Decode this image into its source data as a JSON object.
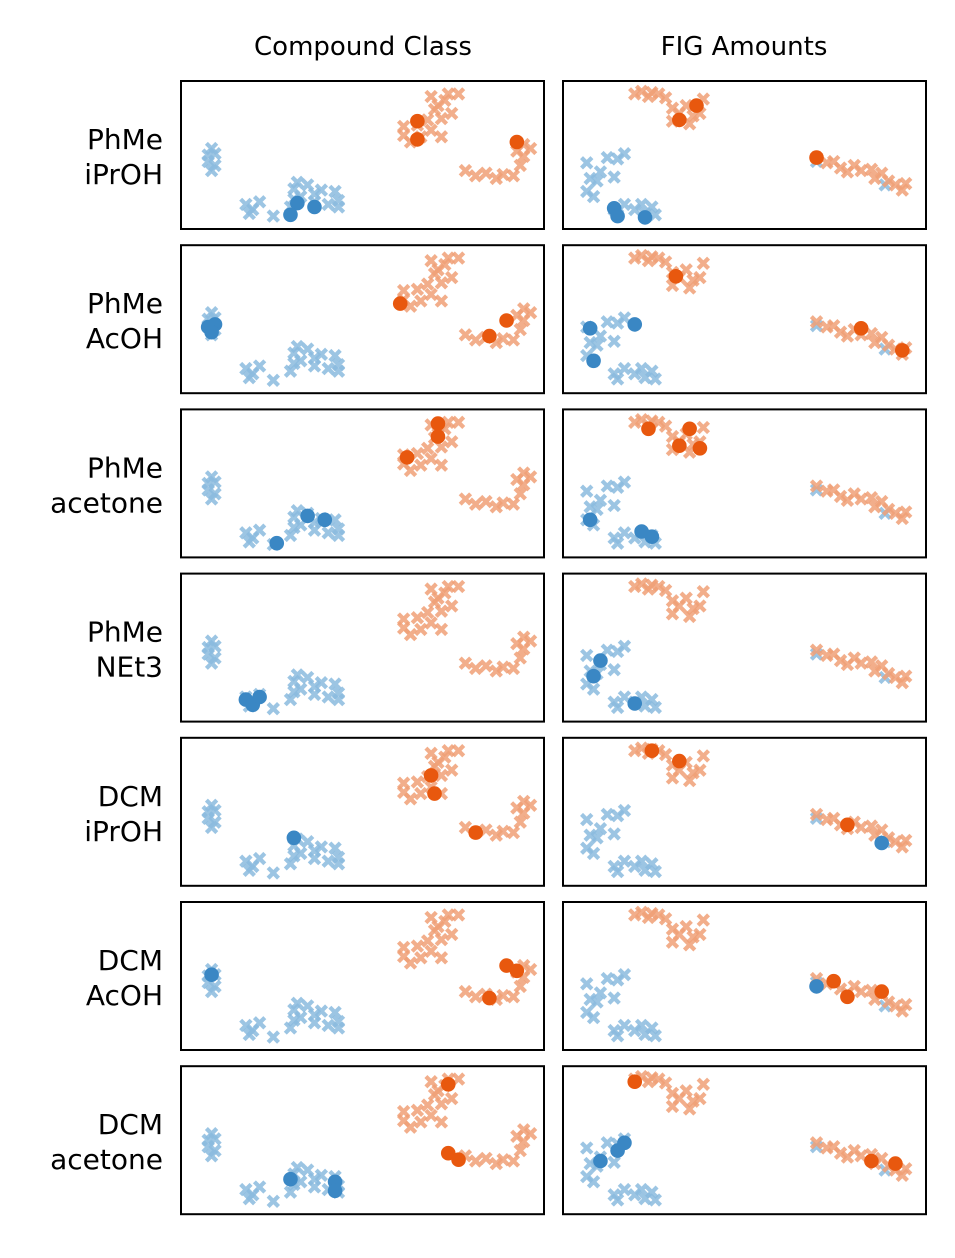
{
  "colors": {
    "blue": "#3a87c4",
    "orange": "#e8580e",
    "bg_blue": "#8bbbdf",
    "bg_orange": "#f0a077"
  },
  "chart_data": {
    "type": "scatter",
    "markers": {
      "background": "x",
      "highlight": "circle"
    },
    "columns": [
      {
        "title": "Compound Class",
        "background": [
          {
            "class": "blue",
            "points": [
              [
                0.06,
                0.45
              ],
              [
                0.07,
                0.49
              ],
              [
                0.05,
                0.55
              ],
              [
                0.07,
                0.58
              ],
              [
                0.06,
                0.62
              ],
              [
                0.05,
                0.5
              ],
              [
                0.16,
                0.88
              ],
              [
                0.18,
                0.92
              ],
              [
                0.2,
                0.86
              ],
              [
                0.17,
                0.95
              ],
              [
                0.24,
                0.97
              ],
              [
                0.29,
                0.9
              ],
              [
                0.3,
                0.76
              ],
              [
                0.31,
                0.71
              ],
              [
                0.3,
                0.84
              ],
              [
                0.34,
                0.73
              ],
              [
                0.32,
                0.82
              ],
              [
                0.36,
                0.86
              ],
              [
                0.38,
                0.77
              ],
              [
                0.4,
                0.88
              ],
              [
                0.42,
                0.78
              ],
              [
                0.43,
                0.85
              ],
              [
                0.43,
                0.9
              ],
              [
                0.36,
                0.8
              ]
            ]
          },
          {
            "class": "orange",
            "points": [
              [
                0.62,
                0.28
              ],
              [
                0.62,
                0.35
              ],
              [
                0.64,
                0.4
              ],
              [
                0.66,
                0.27
              ],
              [
                0.67,
                0.36
              ],
              [
                0.69,
                0.23
              ],
              [
                0.71,
                0.15
              ],
              [
                0.73,
                0.22
              ],
              [
                0.74,
                0.08
              ],
              [
                0.7,
                0.05
              ],
              [
                0.7,
                0.31
              ],
              [
                0.73,
                0.36
              ],
              [
                0.72,
                0.12
              ],
              [
                0.75,
                0.03
              ],
              [
                0.76,
                0.18
              ],
              [
                0.78,
                0.03
              ],
              [
                0.8,
                0.62
              ],
              [
                0.83,
                0.66
              ],
              [
                0.86,
                0.64
              ],
              [
                0.89,
                0.68
              ],
              [
                0.91,
                0.65
              ],
              [
                0.94,
                0.66
              ],
              [
                0.96,
                0.58
              ],
              [
                0.97,
                0.51
              ],
              [
                0.99,
                0.45
              ],
              [
                0.97,
                0.42
              ],
              [
                0.95,
                0.47
              ]
            ]
          }
        ]
      },
      {
        "title": "FIG Amounts",
        "background": [
          {
            "class": "blue",
            "points": [
              [
                0.04,
                0.56
              ],
              [
                0.05,
                0.68
              ],
              [
                0.04,
                0.78
              ],
              [
                0.06,
                0.82
              ],
              [
                0.08,
                0.63
              ],
              [
                0.07,
                0.7
              ],
              [
                0.1,
                0.52
              ],
              [
                0.13,
                0.53
              ],
              [
                0.15,
                0.49
              ],
              [
                0.12,
                0.67
              ],
              [
                0.12,
                0.92
              ],
              [
                0.13,
                0.96
              ],
              [
                0.15,
                0.88
              ],
              [
                0.18,
                0.92
              ],
              [
                0.2,
                0.88
              ],
              [
                0.21,
                0.95
              ],
              [
                0.23,
                0.9
              ],
              [
                0.24,
                0.96
              ],
              [
                0.71,
                0.55
              ],
              [
                0.91,
                0.73
              ]
            ]
          },
          {
            "class": "orange",
            "points": [
              [
                0.18,
                0.03
              ],
              [
                0.2,
                0.01
              ],
              [
                0.22,
                0.05
              ],
              [
                0.23,
                0.02
              ],
              [
                0.25,
                0.03
              ],
              [
                0.27,
                0.06
              ],
              [
                0.29,
                0.14
              ],
              [
                0.29,
                0.24
              ],
              [
                0.31,
                0.18
              ],
              [
                0.33,
                0.12
              ],
              [
                0.34,
                0.26
              ],
              [
                0.35,
                0.2
              ],
              [
                0.37,
                0.18
              ],
              [
                0.38,
                0.07
              ],
              [
                0.71,
                0.52
              ],
              [
                0.74,
                0.56
              ],
              [
                0.76,
                0.55
              ],
              [
                0.78,
                0.6
              ],
              [
                0.8,
                0.63
              ],
              [
                0.82,
                0.58
              ],
              [
                0.84,
                0.62
              ],
              [
                0.87,
                0.61
              ],
              [
                0.88,
                0.68
              ],
              [
                0.9,
                0.64
              ],
              [
                0.92,
                0.7
              ],
              [
                0.94,
                0.73
              ],
              [
                0.96,
                0.77
              ],
              [
                0.97,
                0.72
              ]
            ]
          }
        ]
      }
    ],
    "rows": [
      {
        "label_line1": "PhMe",
        "label_line2": "iPrOH",
        "highlight": [
          [
            {
              "class": "orange",
              "x": 0.66,
              "y": 0.24
            },
            {
              "class": "orange",
              "x": 0.66,
              "y": 0.38
            },
            {
              "class": "orange",
              "x": 0.95,
              "y": 0.4
            },
            {
              "class": "blue",
              "x": 0.31,
              "y": 0.87
            },
            {
              "class": "blue",
              "x": 0.29,
              "y": 0.96
            },
            {
              "class": "blue",
              "x": 0.36,
              "y": 0.9
            }
          ],
          [
            {
              "class": "orange",
              "x": 0.31,
              "y": 0.23
            },
            {
              "class": "orange",
              "x": 0.36,
              "y": 0.12
            },
            {
              "class": "orange",
              "x": 0.71,
              "y": 0.52
            },
            {
              "class": "blue",
              "x": 0.12,
              "y": 0.91
            },
            {
              "class": "blue",
              "x": 0.13,
              "y": 0.97
            },
            {
              "class": "blue",
              "x": 0.21,
              "y": 0.98
            }
          ]
        ]
      },
      {
        "label_line1": "PhMe",
        "label_line2": "AcOH",
        "highlight": [
          [
            {
              "class": "orange",
              "x": 0.61,
              "y": 0.38
            },
            {
              "class": "orange",
              "x": 0.87,
              "y": 0.63
            },
            {
              "class": "orange",
              "x": 0.92,
              "y": 0.51
            },
            {
              "class": "blue",
              "x": 0.05,
              "y": 0.56
            },
            {
              "class": "blue",
              "x": 0.07,
              "y": 0.54
            },
            {
              "class": "blue",
              "x": 0.06,
              "y": 0.6
            }
          ],
          [
            {
              "class": "orange",
              "x": 0.3,
              "y": 0.17
            },
            {
              "class": "orange",
              "x": 0.84,
              "y": 0.57
            },
            {
              "class": "orange",
              "x": 0.96,
              "y": 0.74
            },
            {
              "class": "blue",
              "x": 0.05,
              "y": 0.57
            },
            {
              "class": "blue",
              "x": 0.06,
              "y": 0.82
            },
            {
              "class": "blue",
              "x": 0.18,
              "y": 0.54
            }
          ]
        ]
      },
      {
        "label_line1": "PhMe",
        "label_line2": "acetone",
        "highlight": [
          [
            {
              "class": "orange",
              "x": 0.72,
              "y": 0.04
            },
            {
              "class": "orange",
              "x": 0.72,
              "y": 0.14
            },
            {
              "class": "orange",
              "x": 0.63,
              "y": 0.3
            },
            {
              "class": "blue",
              "x": 0.34,
              "y": 0.75
            },
            {
              "class": "blue",
              "x": 0.39,
              "y": 0.78
            },
            {
              "class": "blue",
              "x": 0.25,
              "y": 0.96
            }
          ],
          [
            {
              "class": "orange",
              "x": 0.22,
              "y": 0.08
            },
            {
              "class": "orange",
              "x": 0.34,
              "y": 0.08
            },
            {
              "class": "orange",
              "x": 0.37,
              "y": 0.23
            },
            {
              "class": "orange",
              "x": 0.31,
              "y": 0.21
            },
            {
              "class": "blue",
              "x": 0.05,
              "y": 0.78
            },
            {
              "class": "blue",
              "x": 0.2,
              "y": 0.87
            },
            {
              "class": "blue",
              "x": 0.23,
              "y": 0.91
            }
          ]
        ]
      },
      {
        "label_line1": "PhMe",
        "label_line2": "NEt3",
        "highlight": [
          [
            {
              "class": "blue",
              "x": 0.16,
              "y": 0.9
            },
            {
              "class": "blue",
              "x": 0.18,
              "y": 0.94
            },
            {
              "class": "blue",
              "x": 0.2,
              "y": 0.88
            }
          ],
          [
            {
              "class": "blue",
              "x": 0.08,
              "y": 0.6
            },
            {
              "class": "blue",
              "x": 0.06,
              "y": 0.72
            },
            {
              "class": "blue",
              "x": 0.18,
              "y": 0.93
            }
          ]
        ]
      },
      {
        "label_line1": "DCM",
        "label_line2": "iPrOH",
        "highlight": [
          [
            {
              "class": "orange",
              "x": 0.7,
              "y": 0.22
            },
            {
              "class": "orange",
              "x": 0.71,
              "y": 0.36
            },
            {
              "class": "orange",
              "x": 0.83,
              "y": 0.66
            },
            {
              "class": "blue",
              "x": 0.3,
              "y": 0.7
            }
          ],
          [
            {
              "class": "orange",
              "x": 0.23,
              "y": 0.03
            },
            {
              "class": "orange",
              "x": 0.31,
              "y": 0.11
            },
            {
              "class": "orange",
              "x": 0.8,
              "y": 0.6
            },
            {
              "class": "blue",
              "x": 0.9,
              "y": 0.74
            }
          ]
        ]
      },
      {
        "label_line1": "DCM",
        "label_line2": "AcOH",
        "highlight": [
          [
            {
              "class": "orange",
              "x": 0.92,
              "y": 0.42
            },
            {
              "class": "orange",
              "x": 0.95,
              "y": 0.46
            },
            {
              "class": "orange",
              "x": 0.87,
              "y": 0.67
            },
            {
              "class": "blue",
              "x": 0.06,
              "y": 0.49
            }
          ],
          [
            {
              "class": "orange",
              "x": 0.76,
              "y": 0.54
            },
            {
              "class": "orange",
              "x": 0.8,
              "y": 0.66
            },
            {
              "class": "orange",
              "x": 0.9,
              "y": 0.62
            },
            {
              "class": "blue",
              "x": 0.71,
              "y": 0.58
            }
          ]
        ]
      },
      {
        "label_line1": "DCM",
        "label_line2": "acetone",
        "highlight": [
          [
            {
              "class": "orange",
              "x": 0.75,
              "y": 0.07
            },
            {
              "class": "orange",
              "x": 0.75,
              "y": 0.6
            },
            {
              "class": "orange",
              "x": 0.78,
              "y": 0.65
            },
            {
              "class": "blue",
              "x": 0.29,
              "y": 0.8
            },
            {
              "class": "blue",
              "x": 0.42,
              "y": 0.82
            },
            {
              "class": "blue",
              "x": 0.42,
              "y": 0.89
            }
          ],
          [
            {
              "class": "orange",
              "x": 0.18,
              "y": 0.05
            },
            {
              "class": "orange",
              "x": 0.87,
              "y": 0.66
            },
            {
              "class": "orange",
              "x": 0.94,
              "y": 0.68
            },
            {
              "class": "blue",
              "x": 0.08,
              "y": 0.66
            },
            {
              "class": "blue",
              "x": 0.13,
              "y": 0.58
            },
            {
              "class": "blue",
              "x": 0.15,
              "y": 0.52
            }
          ]
        ]
      }
    ]
  }
}
